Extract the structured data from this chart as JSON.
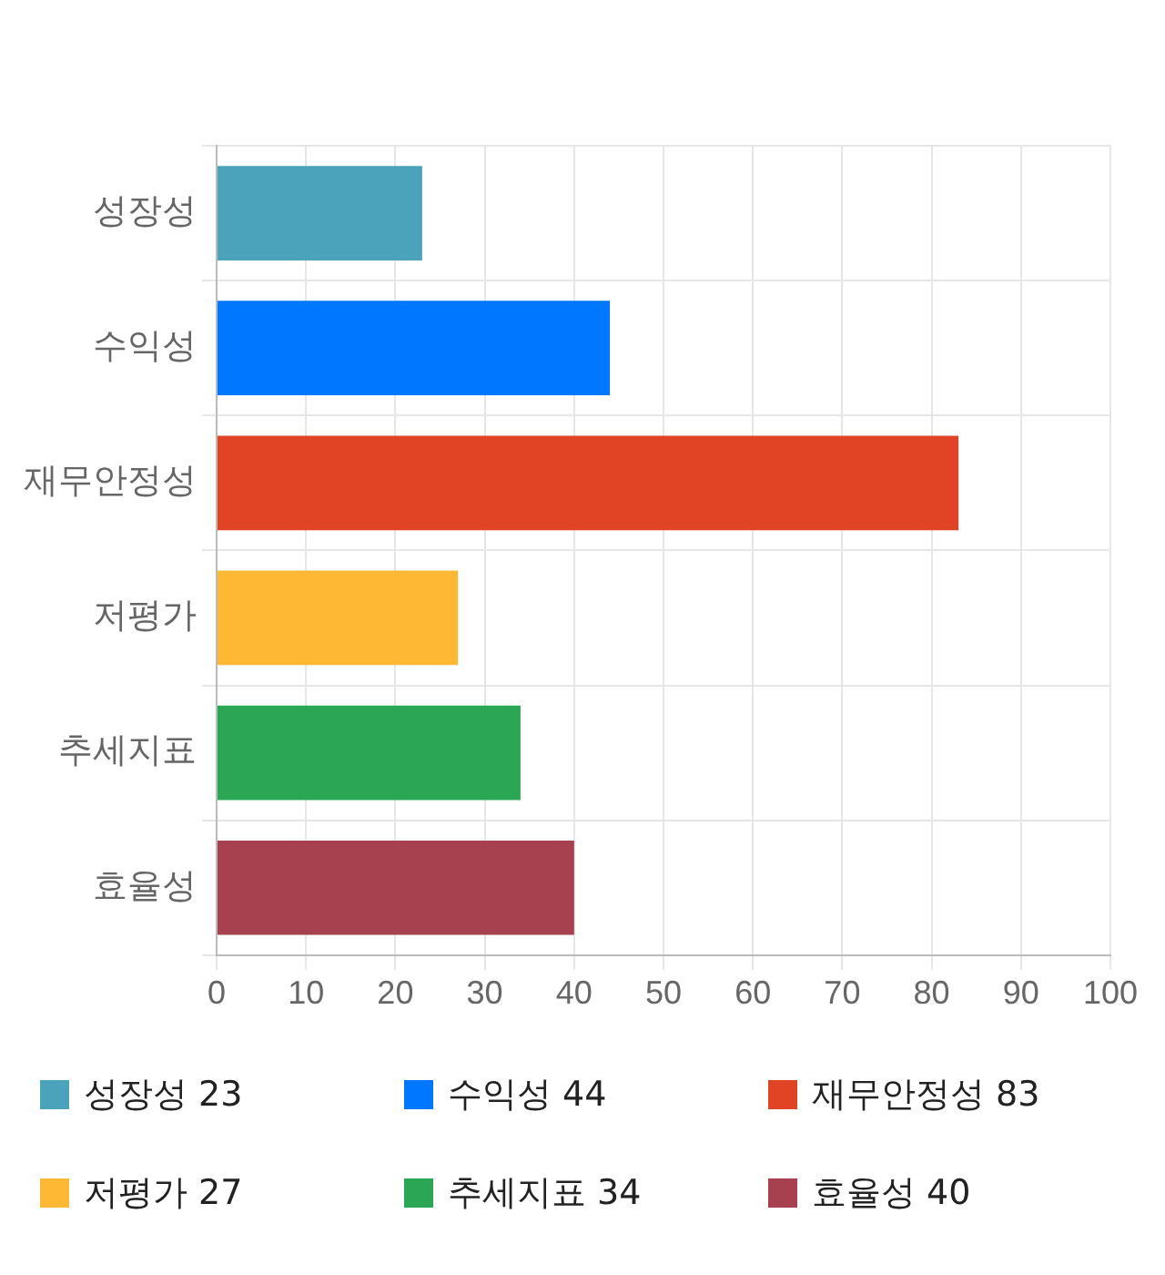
{
  "chart_data": {
    "type": "bar",
    "orientation": "horizontal",
    "categories": [
      "성장성",
      "수익성",
      "재무안정성",
      "저평가",
      "추세지표",
      "효율성"
    ],
    "values": [
      23,
      44,
      83,
      27,
      34,
      40
    ],
    "value_labels": [
      "23",
      "44",
      "83",
      "27",
      "34",
      "40"
    ],
    "colors": [
      "#4aa3bb",
      "#0077ff",
      "#e14424",
      "#ffb833",
      "#2aa655",
      "#a8414f"
    ],
    "xlim": [
      0,
      100
    ],
    "xticks": [
      0,
      10,
      20,
      30,
      40,
      50,
      60,
      70,
      80,
      90,
      100
    ],
    "grid": true
  }
}
